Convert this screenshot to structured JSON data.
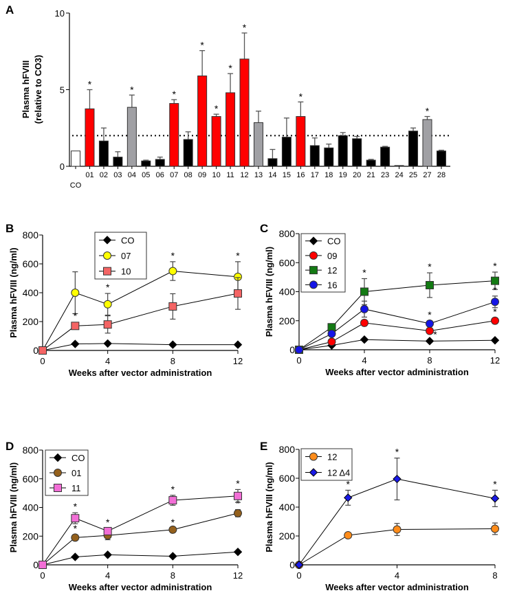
{
  "chart_data": [
    {
      "panel": "A",
      "type": "bar",
      "ylabel": "Plasma hFVIII",
      "ylabel2": "(relative to CO3)",
      "ylim": [
        0,
        10
      ],
      "yticks": [
        0,
        5,
        10
      ],
      "reference_line": 2,
      "categories": [
        "CO",
        "01",
        "02",
        "03",
        "04",
        "05",
        "06",
        "07",
        "08",
        "09",
        "10",
        "11",
        "12",
        "13",
        "14",
        "15",
        "16",
        "17",
        "18",
        "19",
        "20",
        "21",
        "23",
        "24",
        "25",
        "27",
        "28"
      ],
      "values": [
        1.0,
        3.75,
        1.65,
        0.6,
        3.85,
        0.35,
        0.45,
        4.1,
        1.75,
        5.9,
        3.25,
        4.8,
        7.0,
        2.85,
        0.5,
        1.9,
        3.25,
        1.35,
        1.2,
        2.0,
        1.8,
        0.4,
        1.25,
        0.05,
        2.3,
        3.05,
        1.0
      ],
      "err_upper": [
        0,
        5.0,
        2.5,
        0.95,
        4.65,
        0.4,
        0.6,
        4.35,
        2.25,
        7.55,
        3.4,
        6.05,
        8.7,
        3.6,
        1.1,
        3.15,
        4.2,
        1.85,
        1.45,
        2.2,
        1.95,
        0.45,
        1.3,
        0.05,
        2.5,
        3.25,
        1.05
      ],
      "groups": [
        "control",
        "red",
        "black",
        "black",
        "gray",
        "black",
        "black",
        "red",
        "black",
        "red",
        "red",
        "red",
        "red",
        "gray",
        "black",
        "black",
        "red",
        "black",
        "black",
        "black",
        "black",
        "black",
        "black",
        "black",
        "black",
        "gray",
        "black"
      ],
      "significant": [
        false,
        true,
        false,
        false,
        true,
        false,
        false,
        true,
        false,
        true,
        true,
        true,
        true,
        false,
        false,
        false,
        true,
        false,
        false,
        false,
        false,
        false,
        false,
        false,
        false,
        true,
        false
      ],
      "colors": {
        "control": "#ffffff",
        "red": "#ff0000",
        "gray": "#a0a0a4",
        "black": "#000000"
      },
      "star": "*"
    },
    {
      "panel": "B",
      "type": "line",
      "xlabel": "Weeks after vector administration",
      "ylabel": "Plasma hFVIII (ng/ml)",
      "xlim": [
        0,
        12
      ],
      "xticks": [
        0,
        4,
        8,
        12
      ],
      "ylim": [
        0,
        800
      ],
      "yticks": [
        0,
        200,
        400,
        600,
        800
      ],
      "x": [
        0,
        2,
        4,
        8,
        12
      ],
      "series": [
        {
          "name": "CO",
          "marker": "diamond",
          "color": "#000000",
          "values": [
            0,
            45,
            48,
            40,
            40
          ],
          "err": [
            0,
            0,
            0,
            0,
            0
          ],
          "sig": [
            false,
            false,
            false,
            false,
            false
          ]
        },
        {
          "name": "07",
          "marker": "circle",
          "color": "#ffff00",
          "values": [
            0,
            400,
            320,
            550,
            510
          ],
          "err": [
            0,
            145,
            75,
            65,
            105
          ],
          "sig": [
            false,
            false,
            true,
            true,
            true
          ]
        },
        {
          "name": "10",
          "marker": "square",
          "color": "#f46464",
          "values": [
            0,
            170,
            180,
            305,
            395
          ],
          "err": [
            0,
            0,
            60,
            88,
            110
          ],
          "sig": [
            false,
            true,
            false,
            false,
            false
          ]
        }
      ]
    },
    {
      "panel": "C",
      "type": "line",
      "xlabel": "Weeks after vector administration",
      "ylabel": "Plasma hFVIII (ng/ml)",
      "xlim": [
        0,
        12
      ],
      "xticks": [
        0,
        4,
        8,
        12
      ],
      "ylim": [
        0,
        800
      ],
      "yticks": [
        0,
        200,
        400,
        600,
        800
      ],
      "x": [
        0,
        2,
        4,
        8,
        12
      ],
      "series": [
        {
          "name": "CO",
          "marker": "diamond",
          "color": "#000000",
          "values": [
            0,
            30,
            70,
            60,
            65
          ],
          "err": [
            0,
            0,
            0,
            0,
            0
          ],
          "sig": [
            false,
            false,
            false,
            false,
            false
          ]
        },
        {
          "name": "09",
          "marker": "circle",
          "color": "#ff0000",
          "values": [
            0,
            55,
            185,
            130,
            200
          ],
          "err": [
            0,
            10,
            20,
            10,
            20
          ],
          "sig": [
            false,
            false,
            false,
            true,
            true
          ]
        },
        {
          "name": "12",
          "marker": "square",
          "color": "#137a13",
          "values": [
            0,
            155,
            400,
            445,
            475
          ],
          "err": [
            0,
            0,
            90,
            85,
            60
          ],
          "sig": [
            false,
            false,
            true,
            true,
            true
          ]
        },
        {
          "name": "16",
          "marker": "circle",
          "color": "#1515e6",
          "values": [
            0,
            110,
            280,
            180,
            330
          ],
          "err": [
            0,
            10,
            55,
            20,
            40
          ],
          "sig": [
            false,
            false,
            false,
            true,
            true
          ]
        }
      ]
    },
    {
      "panel": "D",
      "type": "line",
      "xlabel": "Weeks after vector administration",
      "ylabel": "Plasma hFVIII (ng/ml)",
      "xlim": [
        0,
        12
      ],
      "xticks": [
        0,
        4,
        8,
        12
      ],
      "ylim": [
        0,
        800
      ],
      "yticks": [
        0,
        200,
        400,
        600,
        800
      ],
      "x": [
        0,
        2,
        4,
        8,
        12
      ],
      "series": [
        {
          "name": "CO",
          "marker": "diamond",
          "color": "#000000",
          "values": [
            0,
            55,
            70,
            60,
            90
          ],
          "err": [
            0,
            0,
            0,
            0,
            0
          ],
          "sig": [
            false,
            false,
            false,
            false,
            false
          ]
        },
        {
          "name": "01",
          "marker": "circle",
          "color": "#94601c",
          "values": [
            0,
            190,
            205,
            245,
            360
          ],
          "err": [
            0,
            20,
            30,
            10,
            25
          ],
          "sig": [
            false,
            true,
            false,
            true,
            true
          ]
        },
        {
          "name": "11",
          "marker": "square",
          "color": "#f26ed6",
          "values": [
            0,
            325,
            235,
            450,
            480
          ],
          "err": [
            0,
            38,
            20,
            35,
            45
          ],
          "sig": [
            false,
            true,
            true,
            true,
            true
          ]
        }
      ]
    },
    {
      "panel": "E",
      "type": "line",
      "xlabel": "Weeks after vector administration",
      "ylabel": "Plasma hFVIII (ng/ml)",
      "xlim": [
        0,
        8
      ],
      "xticks": [
        0,
        4,
        8
      ],
      "ylim": [
        0,
        800
      ],
      "yticks": [
        0,
        200,
        400,
        600,
        800
      ],
      "x": [
        0,
        2,
        4,
        8
      ],
      "series": [
        {
          "name": "12",
          "marker": "circle",
          "color": "#ff8c1a",
          "values": [
            0,
            205,
            245,
            250
          ],
          "err": [
            0,
            0,
            42,
            40
          ],
          "sig": [
            false,
            false,
            false,
            false
          ]
        },
        {
          "name": "12 Δ4",
          "marker": "diamond",
          "color": "#1a1ae6",
          "values": [
            0,
            465,
            595,
            460
          ],
          "err": [
            0,
            52,
            145,
            57
          ],
          "sig": [
            false,
            true,
            true,
            true
          ]
        }
      ]
    }
  ]
}
